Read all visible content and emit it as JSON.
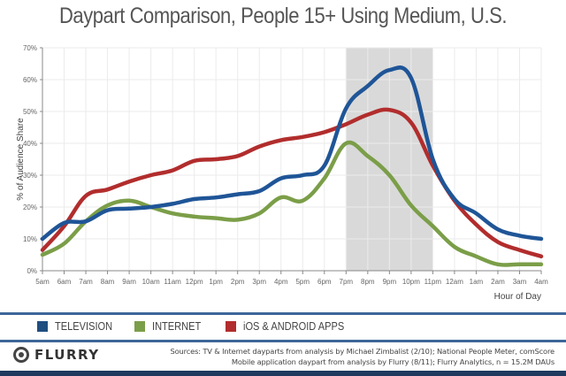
{
  "chart_data": {
    "type": "line",
    "title": "Daypart Comparison, People 15+ Using Medium, U.S.",
    "xlabel": "Hour of Day",
    "ylabel": "% of Audience Share",
    "ylim": [
      0,
      70
    ],
    "yticks": [
      "0%",
      "10%",
      "20%",
      "30%",
      "40%",
      "50%",
      "60%",
      "70%"
    ],
    "grid": true,
    "categories": [
      "5am",
      "6am",
      "7am",
      "8am",
      "9am",
      "10am",
      "11am",
      "12pm",
      "1pm",
      "2pm",
      "3pm",
      "4pm",
      "5pm",
      "6pm",
      "7pm",
      "8pm",
      "9pm",
      "10pm",
      "11pm",
      "12am",
      "1am",
      "2am",
      "3am",
      "4am"
    ],
    "highlight": {
      "from": "7pm",
      "to": "11pm",
      "color": "#d9d9d9"
    },
    "series": [
      {
        "name": "TELEVISION",
        "color": "#1f5597",
        "values": [
          10,
          15,
          15.5,
          19,
          19.5,
          20,
          21,
          22.5,
          23,
          24,
          25,
          29,
          30,
          33,
          51,
          58,
          63,
          60.5,
          35,
          22.5,
          18,
          13,
          11,
          10
        ]
      },
      {
        "name": "INTERNET",
        "color": "#7b9e48",
        "values": [
          5,
          8.5,
          15.5,
          20.5,
          22,
          20,
          18,
          17,
          16.5,
          16,
          18,
          23,
          22,
          29,
          40,
          36,
          30,
          20.5,
          14,
          7.5,
          4.5,
          2,
          2,
          2
        ]
      },
      {
        "name": "iOS & ANDROID APPS",
        "color": "#b22d2d",
        "values": [
          6.5,
          14,
          23.5,
          25.5,
          28,
          30,
          31.5,
          34.5,
          35,
          36,
          39,
          41,
          42,
          43.5,
          46,
          49,
          50.5,
          46.5,
          33,
          22,
          14.5,
          9,
          6.5,
          4.5
        ]
      }
    ],
    "legend_position": "bottom"
  },
  "legend": {
    "items": [
      {
        "label": "TELEVISION",
        "color": "#1f4e7f"
      },
      {
        "label": "INTERNET",
        "color": "#7b9e48"
      },
      {
        "label": "iOS & ANDROID APPS",
        "color": "#b22d2d"
      }
    ]
  },
  "footer": {
    "logo_text": "FLURRY",
    "sources_line1": "Sources: TV & Internet dayparts from analysis by Michael Zimbalist (2/10); National People Meter, comScore",
    "sources_line2": "Mobile application daypart from analysis by Flurry (8/11); Flurry Analytics, n = 15.2M DAUs"
  }
}
